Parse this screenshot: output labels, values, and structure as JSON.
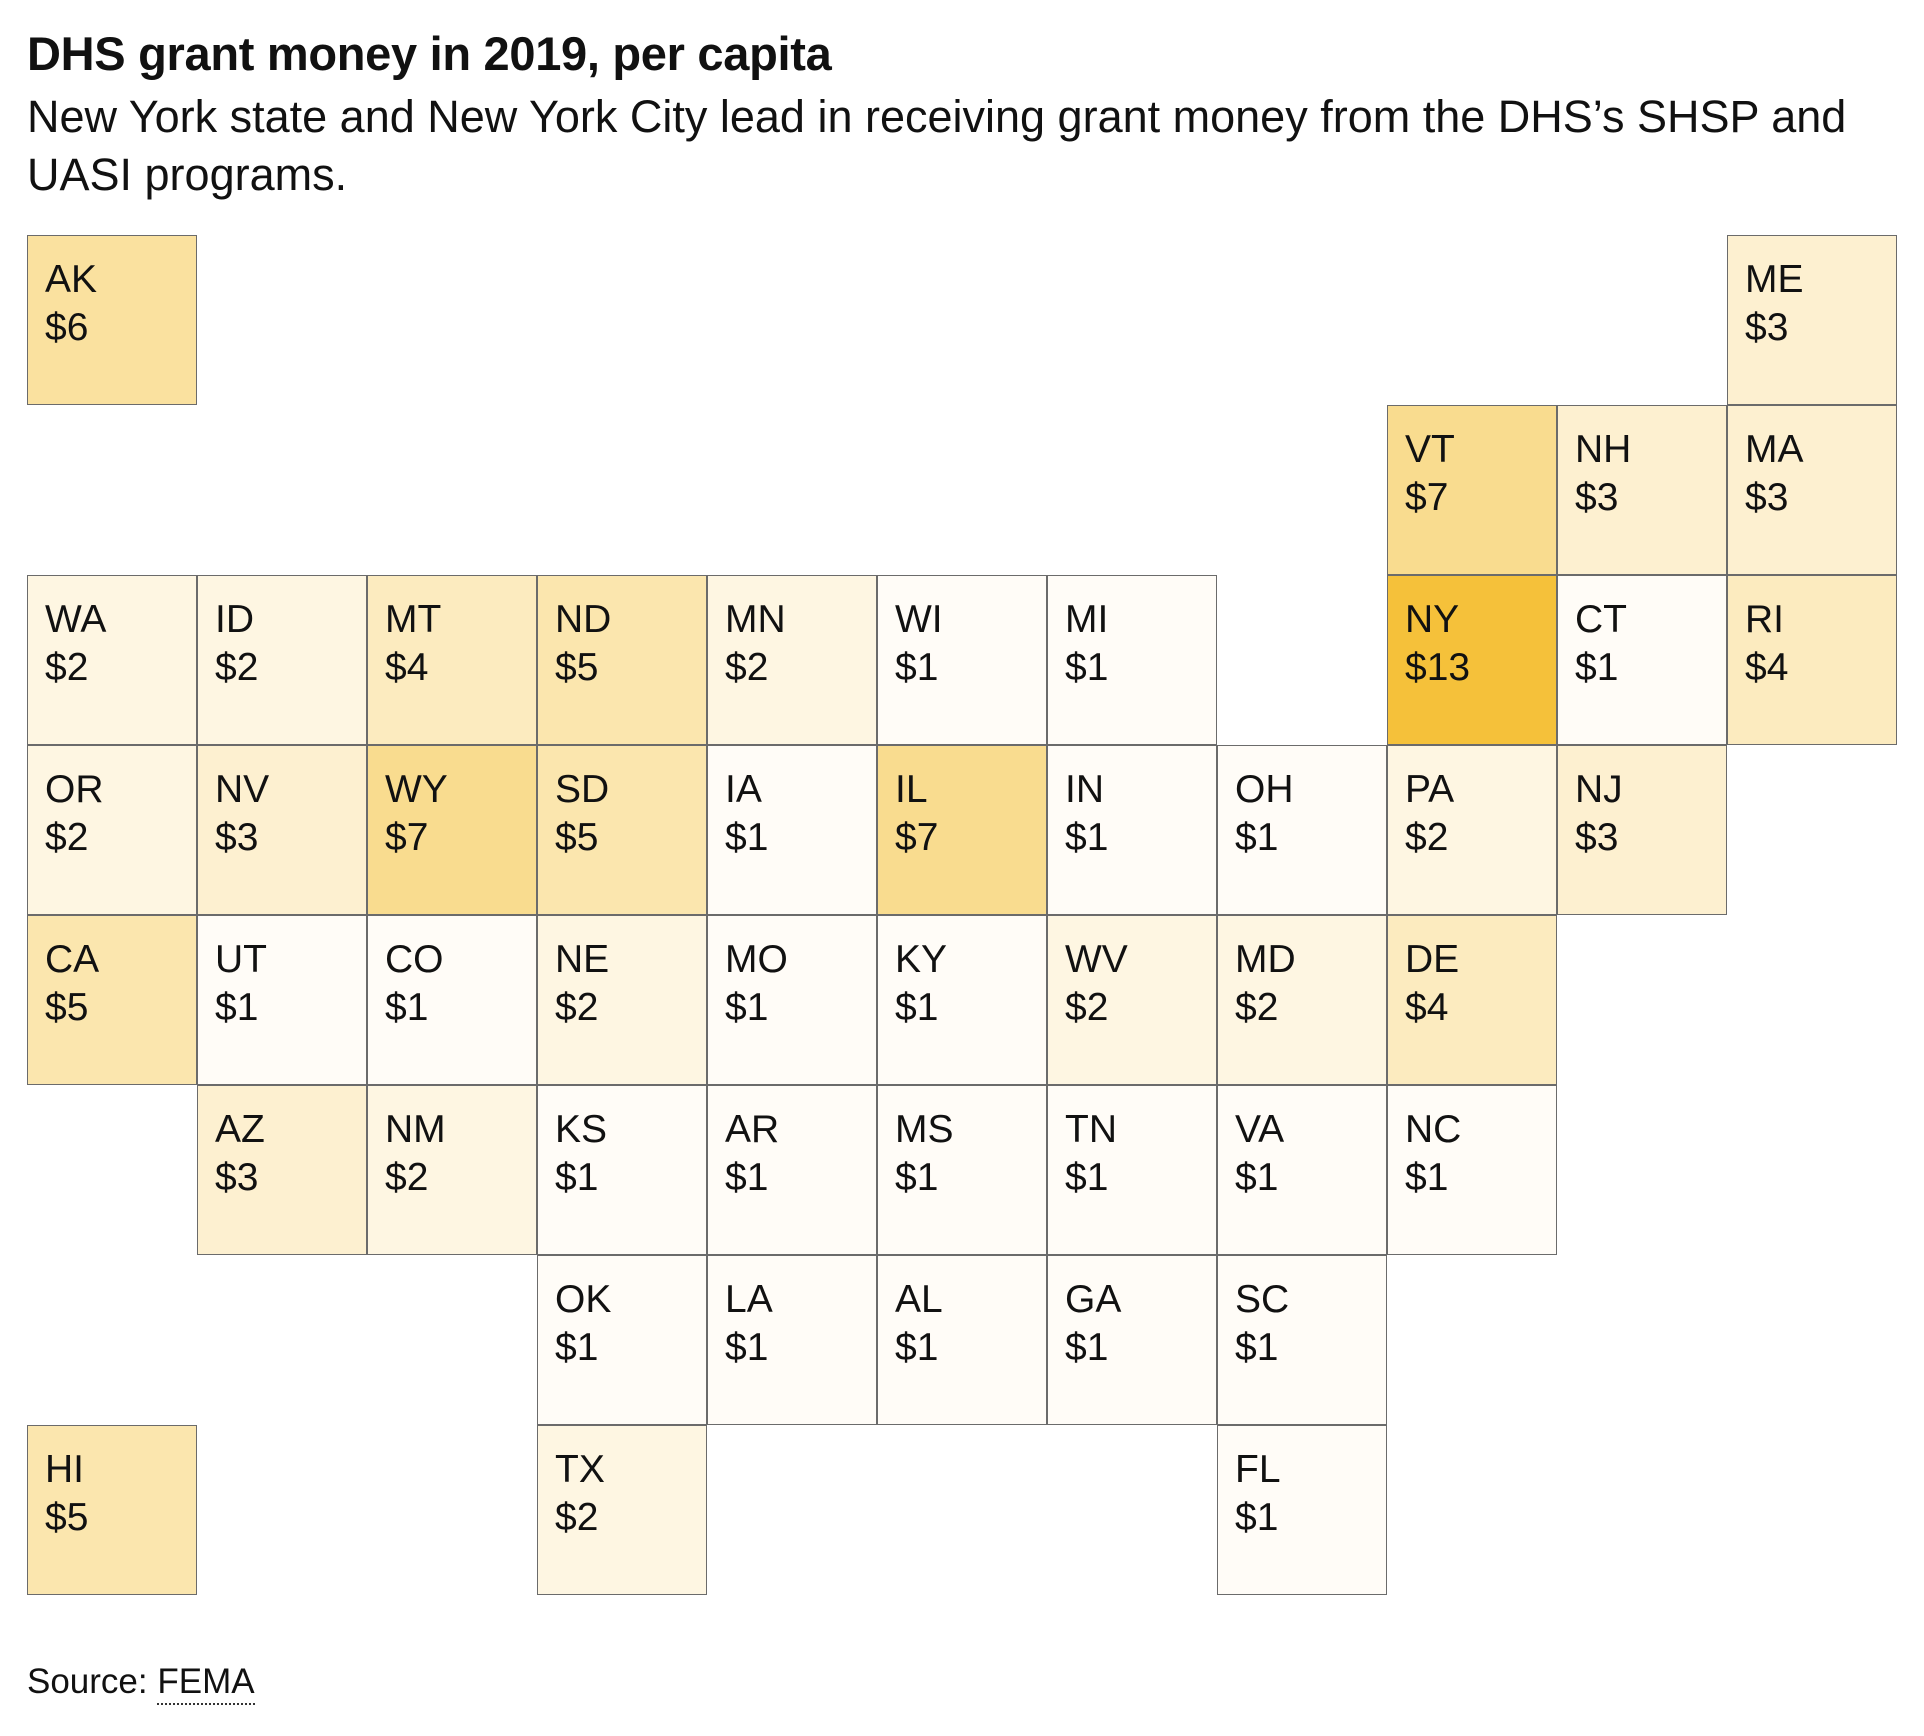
{
  "title": "DHS grant money in 2019, per capita",
  "subtitle": "New York state and New York City lead in receiving grant money from the DHS’s SHSP and UASI programs.",
  "source": {
    "prefix": "Source:",
    "name": "FEMA"
  },
  "colors": {
    "scale_low": "#ffffff",
    "scale_high": "#f5c13a",
    "border": "#6b6b6b",
    "text": "#111111"
  },
  "chart_data": {
    "type": "heatmap",
    "units": "$ per capita",
    "value_max": 13,
    "states": [
      {
        "abbr": "AK",
        "label": "$6",
        "value": 6,
        "row": 0,
        "col": 0
      },
      {
        "abbr": "ME",
        "label": "$3",
        "value": 3,
        "row": 0,
        "col": 10
      },
      {
        "abbr": "VT",
        "label": "$7",
        "value": 7,
        "row": 1,
        "col": 8
      },
      {
        "abbr": "NH",
        "label": "$3",
        "value": 3,
        "row": 1,
        "col": 9
      },
      {
        "abbr": "MA",
        "label": "$3",
        "value": 3,
        "row": 1,
        "col": 10
      },
      {
        "abbr": "WA",
        "label": "$2",
        "value": 2,
        "row": 2,
        "col": 0
      },
      {
        "abbr": "ID",
        "label": "$2",
        "value": 2,
        "row": 2,
        "col": 1
      },
      {
        "abbr": "MT",
        "label": "$4",
        "value": 4,
        "row": 2,
        "col": 2
      },
      {
        "abbr": "ND",
        "label": "$5",
        "value": 5,
        "row": 2,
        "col": 3
      },
      {
        "abbr": "MN",
        "label": "$2",
        "value": 2,
        "row": 2,
        "col": 4
      },
      {
        "abbr": "WI",
        "label": "$1",
        "value": 1,
        "row": 2,
        "col": 5
      },
      {
        "abbr": "MI",
        "label": "$1",
        "value": 1,
        "row": 2,
        "col": 6
      },
      {
        "abbr": "NY",
        "label": "$13",
        "value": 13,
        "row": 2,
        "col": 8
      },
      {
        "abbr": "CT",
        "label": "$1",
        "value": 1,
        "row": 2,
        "col": 9
      },
      {
        "abbr": "RI",
        "label": "$4",
        "value": 4,
        "row": 2,
        "col": 10
      },
      {
        "abbr": "OR",
        "label": "$2",
        "value": 2,
        "row": 3,
        "col": 0
      },
      {
        "abbr": "NV",
        "label": "$3",
        "value": 3,
        "row": 3,
        "col": 1
      },
      {
        "abbr": "WY",
        "label": "$7",
        "value": 7,
        "row": 3,
        "col": 2
      },
      {
        "abbr": "SD",
        "label": "$5",
        "value": 5,
        "row": 3,
        "col": 3
      },
      {
        "abbr": "IA",
        "label": "$1",
        "value": 1,
        "row": 3,
        "col": 4
      },
      {
        "abbr": "IL",
        "label": "$7",
        "value": 7,
        "row": 3,
        "col": 5
      },
      {
        "abbr": "IN",
        "label": "$1",
        "value": 1,
        "row": 3,
        "col": 6
      },
      {
        "abbr": "OH",
        "label": "$1",
        "value": 1,
        "row": 3,
        "col": 7
      },
      {
        "abbr": "PA",
        "label": "$2",
        "value": 2,
        "row": 3,
        "col": 8
      },
      {
        "abbr": "NJ",
        "label": "$3",
        "value": 3,
        "row": 3,
        "col": 9
      },
      {
        "abbr": "CA",
        "label": "$5",
        "value": 5,
        "row": 4,
        "col": 0
      },
      {
        "abbr": "UT",
        "label": "$1",
        "value": 1,
        "row": 4,
        "col": 1
      },
      {
        "abbr": "CO",
        "label": "$1",
        "value": 1,
        "row": 4,
        "col": 2
      },
      {
        "abbr": "NE",
        "label": "$2",
        "value": 2,
        "row": 4,
        "col": 3
      },
      {
        "abbr": "MO",
        "label": "$1",
        "value": 1,
        "row": 4,
        "col": 4
      },
      {
        "abbr": "KY",
        "label": "$1",
        "value": 1,
        "row": 4,
        "col": 5
      },
      {
        "abbr": "WV",
        "label": "$2",
        "value": 2,
        "row": 4,
        "col": 6
      },
      {
        "abbr": "MD",
        "label": "$2",
        "value": 2,
        "row": 4,
        "col": 7
      },
      {
        "abbr": "DE",
        "label": "$4",
        "value": 4,
        "row": 4,
        "col": 8
      },
      {
        "abbr": "AZ",
        "label": "$3",
        "value": 3,
        "row": 5,
        "col": 1
      },
      {
        "abbr": "NM",
        "label": "$2",
        "value": 2,
        "row": 5,
        "col": 2
      },
      {
        "abbr": "KS",
        "label": "$1",
        "value": 1,
        "row": 5,
        "col": 3
      },
      {
        "abbr": "AR",
        "label": "$1",
        "value": 1,
        "row": 5,
        "col": 4
      },
      {
        "abbr": "MS",
        "label": "$1",
        "value": 1,
        "row": 5,
        "col": 5
      },
      {
        "abbr": "TN",
        "label": "$1",
        "value": 1,
        "row": 5,
        "col": 6
      },
      {
        "abbr": "VA",
        "label": "$1",
        "value": 1,
        "row": 5,
        "col": 7
      },
      {
        "abbr": "NC",
        "label": "$1",
        "value": 1,
        "row": 5,
        "col": 8
      },
      {
        "abbr": "OK",
        "label": "$1",
        "value": 1,
        "row": 6,
        "col": 3
      },
      {
        "abbr": "LA",
        "label": "$1",
        "value": 1,
        "row": 6,
        "col": 4
      },
      {
        "abbr": "AL",
        "label": "$1",
        "value": 1,
        "row": 6,
        "col": 5
      },
      {
        "abbr": "GA",
        "label": "$1",
        "value": 1,
        "row": 6,
        "col": 6
      },
      {
        "abbr": "SC",
        "label": "$1",
        "value": 1,
        "row": 6,
        "col": 7
      },
      {
        "abbr": "HI",
        "label": "$5",
        "value": 5,
        "row": 7,
        "col": 0
      },
      {
        "abbr": "TX",
        "label": "$2",
        "value": 2,
        "row": 7,
        "col": 3
      },
      {
        "abbr": "FL",
        "label": "$1",
        "value": 1,
        "row": 7,
        "col": 7
      }
    ]
  }
}
